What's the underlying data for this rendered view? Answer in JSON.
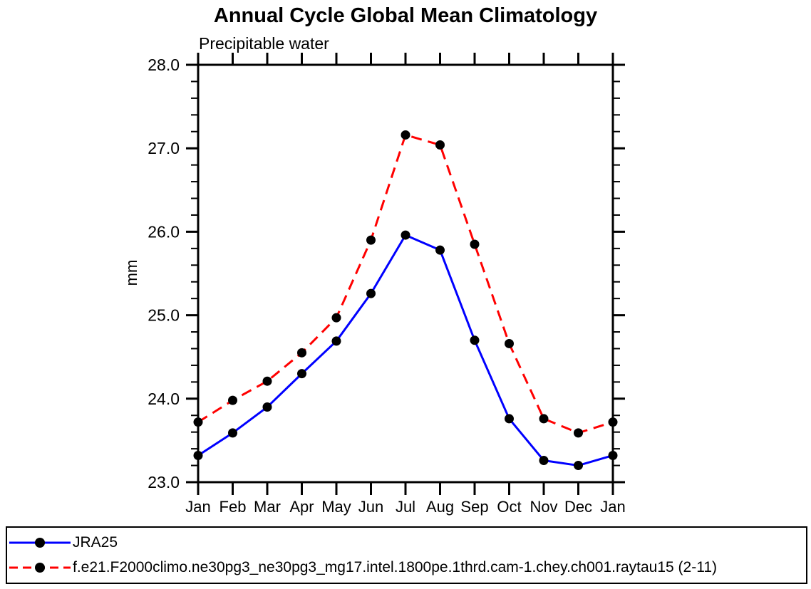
{
  "title": "Annual Cycle Global Mean Climatology",
  "chart_data": {
    "type": "line",
    "title": "Annual Cycle Global Mean Climatology",
    "subtitle": "Precipitable water",
    "xlabel": "",
    "ylabel": "mm",
    "categories": [
      "Jan",
      "Feb",
      "Mar",
      "Apr",
      "May",
      "Jun",
      "Jul",
      "Aug",
      "Sep",
      "Oct",
      "Nov",
      "Dec",
      "Jan"
    ],
    "ylim": [
      23.0,
      28.0
    ],
    "ytick_major": 1.0,
    "ytick_minor": 0.2,
    "ytick_label_format_decimals": 1,
    "grid": false,
    "legend_position": "bottom-box-full-width",
    "axis_color": "#000000",
    "marker": "filled-circle",
    "marker_color": "#000000",
    "series": [
      {
        "name": "JRA25",
        "color": "#0000ff",
        "line_style": "solid",
        "values": [
          23.32,
          23.59,
          23.9,
          24.3,
          24.69,
          25.26,
          25.96,
          25.78,
          24.7,
          23.76,
          23.26,
          23.2,
          23.32
        ]
      },
      {
        "name": "f.e21.F2000climo.ne30pg3_ne30pg3_mg17.intel.1800pe.1thrd.cam-1.chey.ch001.raytau15 (2-11)",
        "color": "#ff0000",
        "line_style": "dashed",
        "values": [
          23.72,
          23.98,
          24.21,
          24.55,
          24.97,
          25.9,
          27.16,
          27.04,
          25.85,
          24.66,
          23.76,
          23.59,
          23.72
        ]
      }
    ]
  }
}
